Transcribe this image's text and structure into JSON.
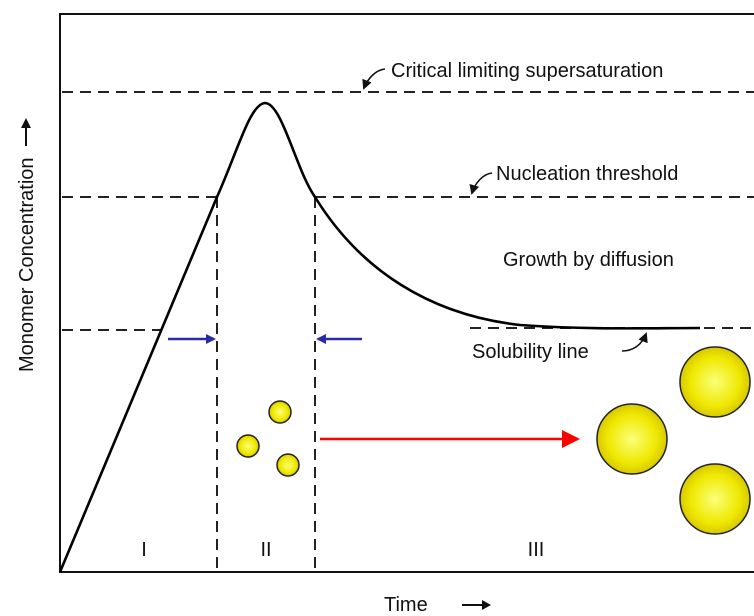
{
  "diagram": {
    "y_axis_label": "Monomer Concentration",
    "x_axis_label": "Time",
    "levels": {
      "critical_limiting_supersaturation": "Critical limiting supersaturation",
      "nucleation_threshold": "Nucleation threshold",
      "growth_by_diffusion": "Growth by diffusion",
      "solubility_line": "Solubility line"
    },
    "stages": [
      "I",
      "II",
      "III"
    ],
    "colors": {
      "curve": "#000000",
      "dashed_lines": "#222222",
      "blue_arrows": "#2b2ba8",
      "red_arrow": "#ff0000",
      "particle_fill": "#f2ee0a",
      "particle_stroke": "#222222"
    },
    "icons": {
      "x_arrow": "right-arrow-icon",
      "y_arrow": "up-arrow-icon"
    }
  }
}
